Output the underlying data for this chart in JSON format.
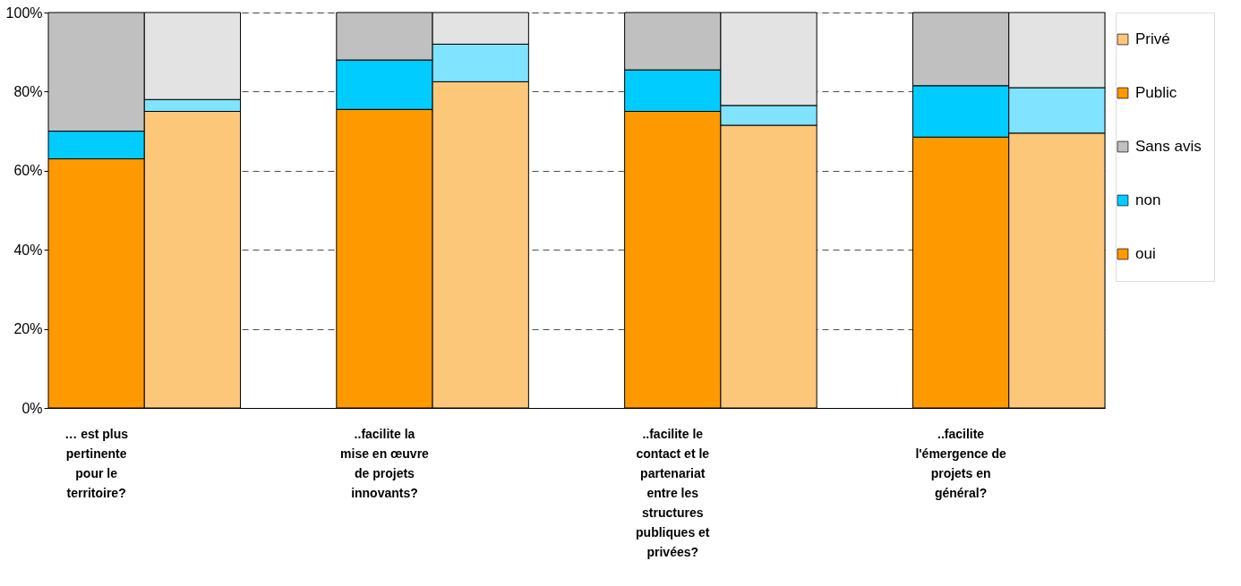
{
  "chart_data": {
    "type": "bar",
    "stacked": true,
    "categories": [
      "… est plus pertinente pour le territoire?",
      null,
      null,
      "..facilite la mise en œuvre de projets innovants?",
      null,
      null,
      "..facilite le contact et le partenariat entre les structures publiques et privées?",
      null,
      null,
      "..facilite l'émergence de projets en général?",
      null
    ],
    "series": [
      {
        "name": "oui",
        "color": "#ff9900",
        "values": [
          63,
          null,
          null,
          75.5,
          null,
          null,
          75,
          null,
          null,
          68.5,
          null
        ]
      },
      {
        "name": "non",
        "color": "#00ccff",
        "values": [
          7,
          null,
          null,
          12.5,
          null,
          null,
          10.5,
          null,
          null,
          13,
          null
        ]
      },
      {
        "name": "Sans avis",
        "color": "#c0c0c0",
        "values": [
          30,
          null,
          null,
          12,
          null,
          null,
          14.5,
          null,
          null,
          18.5,
          null
        ]
      },
      {
        "name": "Privé",
        "color": "#fdc77a",
        "values": [
          null,
          75,
          null,
          null,
          82.5,
          null,
          null,
          71.5,
          null,
          null,
          69.5
        ]
      },
      {
        "color": "#80e3ff",
        "values": [
          null,
          3,
          null,
          null,
          9.5,
          null,
          null,
          5,
          null,
          null,
          11.5
        ]
      },
      {
        "color": "#e3e3e3",
        "values": [
          null,
          22,
          null,
          null,
          8,
          null,
          null,
          23.5,
          null,
          null,
          19
        ]
      }
    ],
    "annotations": [
      "Public"
    ],
    "ylim": [
      0,
      100
    ],
    "yticks": [
      {
        "value": 0,
        "label": "0%"
      },
      {
        "value": 20,
        "label": "20%"
      },
      {
        "value": 40,
        "label": "40%"
      },
      {
        "value": 60,
        "label": "60%"
      },
      {
        "value": 80,
        "label": "80%"
      },
      {
        "value": 100,
        "label": "100%"
      }
    ],
    "grid": "y",
    "legend": "right"
  }
}
